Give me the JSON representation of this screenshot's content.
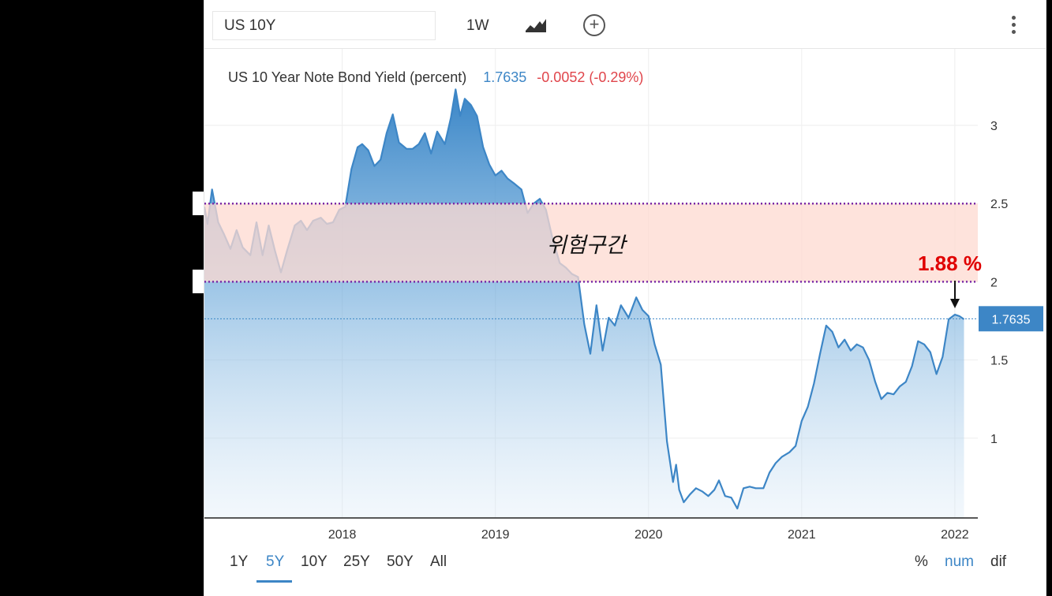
{
  "toolbar": {
    "symbol": "US 10Y",
    "interval": "1W",
    "chart_type_icon": "line-chart-icon",
    "add_icon": "plus-circle-icon",
    "menu_icon": "kebab-menu-icon"
  },
  "legend": {
    "name": "US 10 Year Note Bond Yield (percent)",
    "last": "1.7635",
    "change": "-0.0052 (-0.29%)"
  },
  "annotations": {
    "zone_label": "위험구간",
    "callout": "1.88 %",
    "last_price_tag": "1.7635"
  },
  "ranges": {
    "items": [
      "1Y",
      "5Y",
      "10Y",
      "25Y",
      "50Y",
      "All"
    ],
    "active": "5Y"
  },
  "modes": {
    "items": [
      "%",
      "num",
      "dif"
    ],
    "active": "num"
  },
  "colors": {
    "line": "#3d86c6",
    "zone_fill": "#fdd9d0",
    "zone_border": "#7a2aa8",
    "negative": "#e0454b",
    "callout": "#e00000"
  },
  "chart_data": {
    "type": "area",
    "title": "US 10 Year Note Bond Yield (percent)",
    "xlabel": "",
    "ylabel": "",
    "x_ticks": [
      "2018",
      "2019",
      "2020",
      "2021",
      "2022"
    ],
    "y_ticks": [
      1,
      1.5,
      2,
      2.5,
      3
    ],
    "ylim": [
      0.5,
      3.25
    ],
    "xlim": [
      2017.1,
      2022.15
    ],
    "shaded_band": [
      2.0,
      2.5
    ],
    "last_value": 1.7635,
    "grid": true,
    "series": [
      {
        "x": [
          2017.1,
          2017.12,
          2017.15,
          2017.19,
          2017.23,
          2017.27,
          2017.31,
          2017.35,
          2017.4,
          2017.44,
          2017.48,
          2017.52,
          2017.56,
          2017.6,
          2017.64,
          2017.69,
          2017.73,
          2017.77,
          2017.81,
          2017.86,
          2017.9,
          2017.94,
          2017.98,
          2018.02,
          2018.06,
          2018.1,
          2018.13,
          2018.17,
          2018.21,
          2018.25,
          2018.29,
          2018.33,
          2018.37,
          2018.42,
          2018.46,
          2018.5,
          2018.54,
          2018.58,
          2018.62,
          2018.67,
          2018.71,
          2018.74,
          2018.77,
          2018.8,
          2018.84,
          2018.88,
          2018.92,
          2018.96,
          2019.0,
          2019.04,
          2019.08,
          2019.12,
          2019.17,
          2019.21,
          2019.25,
          2019.29,
          2019.33,
          2019.37,
          2019.42,
          2019.46,
          2019.5,
          2019.54,
          2019.58,
          2019.62,
          2019.66,
          2019.7,
          2019.74,
          2019.78,
          2019.82,
          2019.87,
          2019.92,
          2019.96,
          2020.0,
          2020.04,
          2020.08,
          2020.12,
          2020.16,
          2020.18,
          2020.2,
          2020.23,
          2020.27,
          2020.31,
          2020.35,
          2020.39,
          2020.43,
          2020.46,
          2020.5,
          2020.54,
          2020.58,
          2020.62,
          2020.66,
          2020.7,
          2020.75,
          2020.79,
          2020.83,
          2020.87,
          2020.92,
          2020.96,
          2021.0,
          2021.04,
          2021.08,
          2021.12,
          2021.16,
          2021.2,
          2021.24,
          2021.28,
          2021.32,
          2021.36,
          2021.4,
          2021.44,
          2021.48,
          2021.52,
          2021.56,
          2021.6,
          2021.64,
          2021.68,
          2021.72,
          2021.76,
          2021.8,
          2021.84,
          2021.88,
          2021.92,
          2021.96,
          2022.0,
          2022.03,
          2022.06
        ],
        "values": [
          2.48,
          2.37,
          2.59,
          2.38,
          2.3,
          2.21,
          2.33,
          2.22,
          2.17,
          2.38,
          2.17,
          2.36,
          2.2,
          2.06,
          2.2,
          2.36,
          2.39,
          2.33,
          2.39,
          2.41,
          2.37,
          2.38,
          2.46,
          2.48,
          2.72,
          2.86,
          2.88,
          2.84,
          2.74,
          2.78,
          2.95,
          3.07,
          2.89,
          2.85,
          2.85,
          2.88,
          2.95,
          2.82,
          2.96,
          2.88,
          3.05,
          3.23,
          3.06,
          3.17,
          3.13,
          3.06,
          2.86,
          2.75,
          2.68,
          2.71,
          2.66,
          2.63,
          2.59,
          2.44,
          2.5,
          2.53,
          2.46,
          2.29,
          2.12,
          2.09,
          2.05,
          2.03,
          1.73,
          1.54,
          1.85,
          1.56,
          1.77,
          1.72,
          1.85,
          1.77,
          1.9,
          1.82,
          1.78,
          1.6,
          1.47,
          0.98,
          0.72,
          0.83,
          0.67,
          0.59,
          0.64,
          0.68,
          0.66,
          0.63,
          0.67,
          0.73,
          0.63,
          0.62,
          0.55,
          0.68,
          0.69,
          0.68,
          0.68,
          0.78,
          0.84,
          0.88,
          0.91,
          0.95,
          1.11,
          1.2,
          1.35,
          1.54,
          1.72,
          1.68,
          1.58,
          1.63,
          1.56,
          1.6,
          1.58,
          1.5,
          1.36,
          1.25,
          1.29,
          1.28,
          1.33,
          1.36,
          1.46,
          1.62,
          1.6,
          1.55,
          1.41,
          1.52,
          1.76,
          1.79,
          1.78,
          1.76
        ]
      }
    ]
  }
}
